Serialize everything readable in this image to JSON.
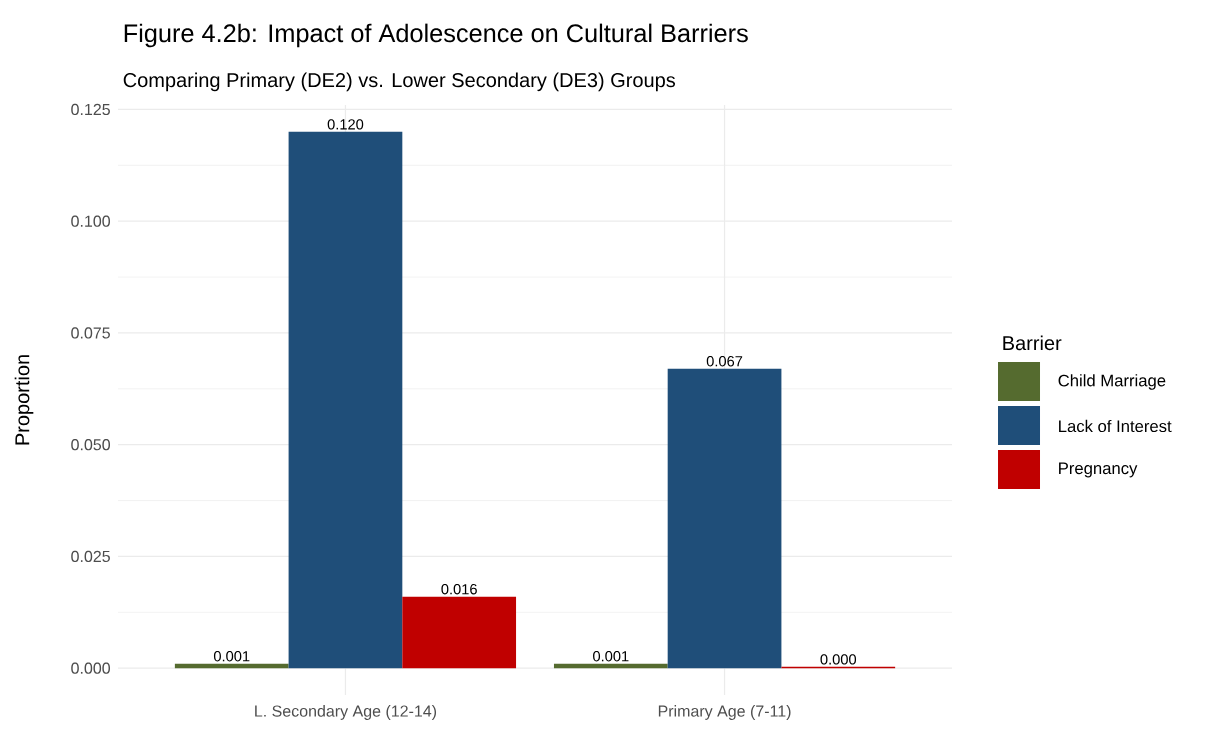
{
  "chart_data": {
    "type": "bar",
    "title": "Figure 4.2b: Impact of Adolescence on Cultural Barriers",
    "subtitle": "Comparing Primary (DE2) vs. Lower Secondary (DE3) Groups",
    "ylabel": "Proportion",
    "legend_title": "Barrier",
    "categories": [
      "L. Secondary Age (12-14)",
      "Primary Age (7-11)"
    ],
    "series": [
      {
        "name": "Child Marriage",
        "color": "#556b2f",
        "values": [
          0.001,
          0.001
        ],
        "value_labels": [
          "0.001",
          "0.001"
        ]
      },
      {
        "name": "Lack of Interest",
        "color": "#1f4e79",
        "values": [
          0.12,
          0.067
        ],
        "value_labels": [
          "0.120",
          "0.067"
        ]
      },
      {
        "name": "Pregnancy",
        "color": "#c00000",
        "values": [
          0.016,
          0.0003
        ],
        "value_labels": [
          "0.016",
          "0.000"
        ]
      }
    ],
    "ylim": [
      -0.006,
      0.126
    ],
    "yticks": [
      {
        "value": 0,
        "label": "0.000"
      },
      {
        "value": 0.025,
        "label": "0.025"
      },
      {
        "value": 0.05,
        "label": "0.050"
      },
      {
        "value": 0.075,
        "label": "0.075"
      },
      {
        "value": 0.1,
        "label": "0.100"
      },
      {
        "value": 0.125,
        "label": "0.125"
      }
    ],
    "grid": true,
    "legend": "right"
  }
}
